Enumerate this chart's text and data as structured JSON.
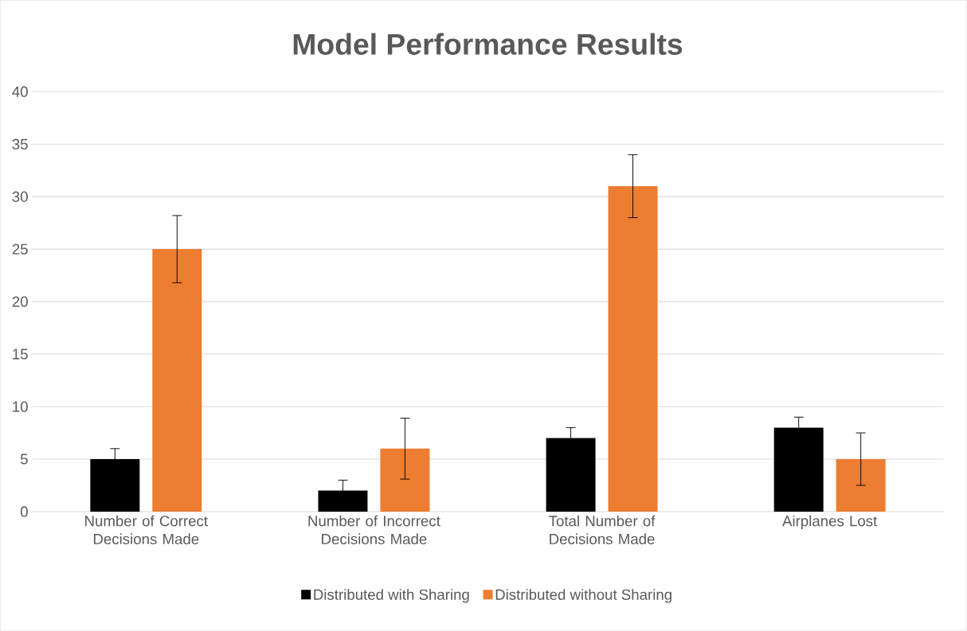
{
  "chart_data": {
    "type": "bar",
    "title": "Model Performance Results",
    "categories": [
      "Number of Correct Decisions Made",
      "Number of Incorrect Decisions Made",
      "Total Number of Decisions Made",
      "Airplanes Lost"
    ],
    "series": [
      {
        "name": "Distributed with Sharing",
        "color": "#000000",
        "values": [
          5,
          2,
          7,
          8
        ],
        "errors": [
          1,
          1,
          1,
          1
        ]
      },
      {
        "name": "Distributed without Sharing",
        "color": "#ed7d31",
        "values": [
          25,
          6,
          31,
          5
        ],
        "errors": [
          3.2,
          2.9,
          3,
          2.5
        ]
      }
    ],
    "ylim": [
      0,
      40
    ],
    "yticks": [
      0,
      5,
      10,
      15,
      20,
      25,
      30,
      35,
      40
    ],
    "grid": "y",
    "legend": "bottom"
  }
}
